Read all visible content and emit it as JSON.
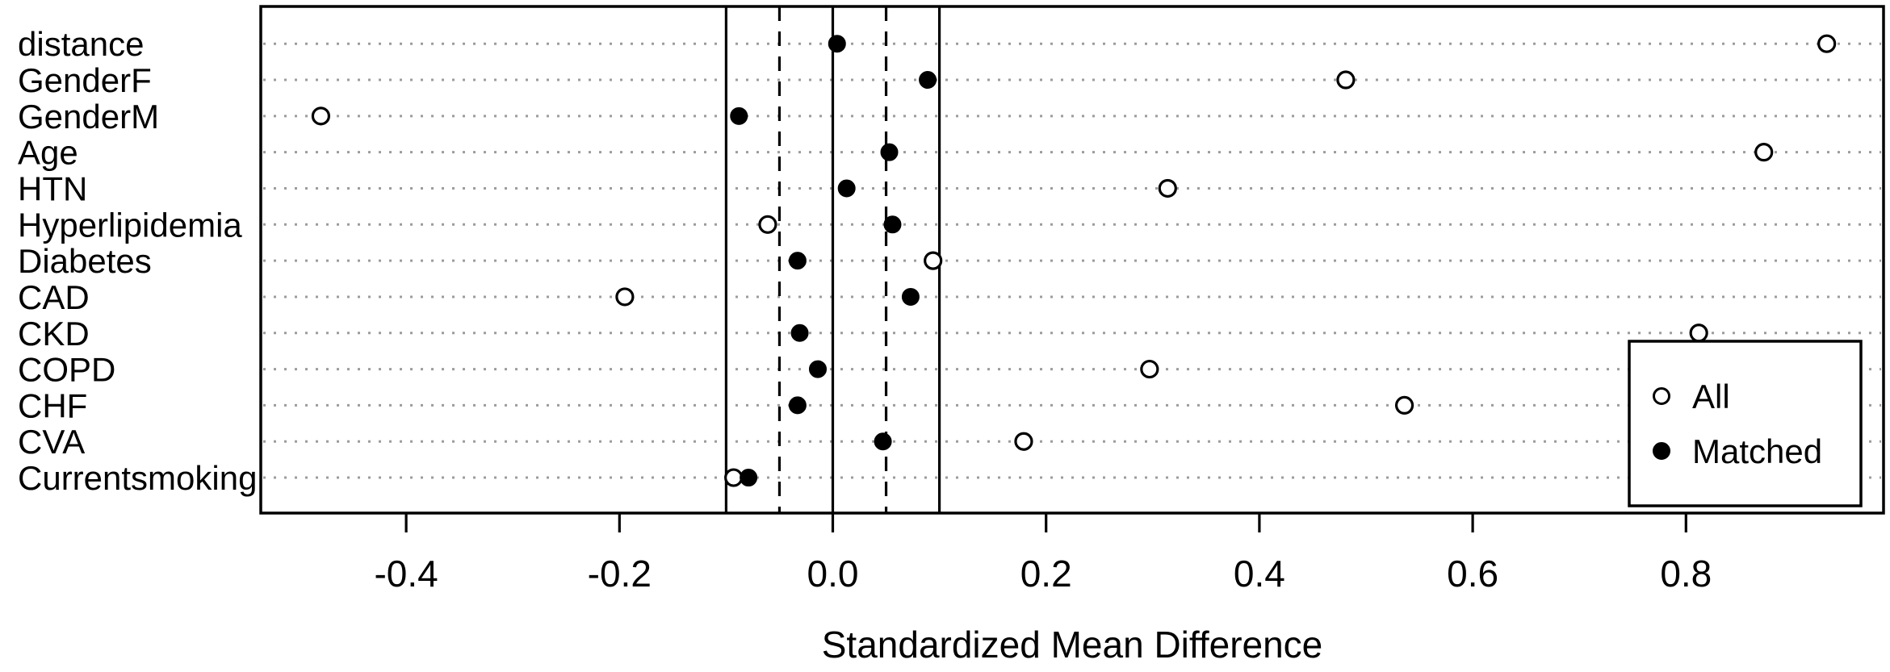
{
  "chart_data": {
    "type": "scatter",
    "title": "",
    "xlabel": "Standardized Mean Difference",
    "ylabel": "",
    "xlim": [
      -0.536,
      0.985
    ],
    "grid": "horizontal dotted line per category",
    "x_ticks": [
      -0.4,
      -0.2,
      0.0,
      0.2,
      0.4,
      0.6,
      0.8
    ],
    "x_tick_labels": [
      "-0.4",
      "-0.2",
      "0.0",
      "0.2",
      "0.4",
      "0.6",
      "0.8"
    ],
    "categories": [
      "distance",
      "GenderF",
      "GenderM",
      "Age",
      "HTN",
      "Hyperlipidemia",
      "Diabetes",
      "CAD",
      "CKD",
      "COPD",
      "CHF",
      "CVA",
      "Currentsmoking"
    ],
    "series": [
      {
        "name": "All",
        "marker": "open-circle",
        "values": [
          0.932,
          0.481,
          -0.48,
          0.873,
          0.314,
          -0.061,
          0.094,
          -0.195,
          0.812,
          0.297,
          0.536,
          0.179,
          -0.093
        ]
      },
      {
        "name": "Matched",
        "marker": "filled-circle",
        "values": [
          0.004,
          0.089,
          -0.088,
          0.053,
          0.013,
          0.056,
          -0.033,
          0.073,
          -0.031,
          -0.014,
          -0.033,
          0.047,
          -0.079
        ]
      }
    ],
    "reference_lines": {
      "solid": [
        -0.1,
        0.0,
        0.1
      ],
      "dashed": [
        -0.05,
        0.05
      ]
    },
    "legend": {
      "position": "bottom-right",
      "entries": [
        {
          "label": "All",
          "marker": "open-circle"
        },
        {
          "label": "Matched",
          "marker": "filled-circle"
        }
      ]
    },
    "colors": {
      "foreground": "#000000",
      "background": "#ffffff",
      "gridline": "#9c9c9c"
    }
  }
}
